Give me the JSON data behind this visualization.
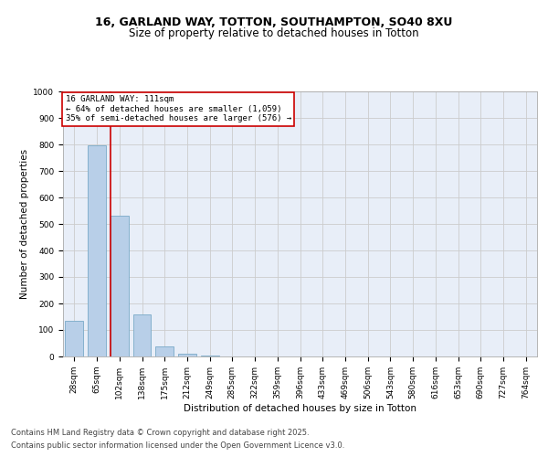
{
  "title1": "16, GARLAND WAY, TOTTON, SOUTHAMPTON, SO40 8XU",
  "title2": "Size of property relative to detached houses in Totton",
  "xlabel": "Distribution of detached houses by size in Totton",
  "ylabel": "Number of detached properties",
  "categories": [
    "28sqm",
    "65sqm",
    "102sqm",
    "138sqm",
    "175sqm",
    "212sqm",
    "249sqm",
    "285sqm",
    "322sqm",
    "359sqm",
    "396sqm",
    "433sqm",
    "469sqm",
    "506sqm",
    "543sqm",
    "580sqm",
    "616sqm",
    "653sqm",
    "690sqm",
    "727sqm",
    "764sqm"
  ],
  "values": [
    135,
    795,
    530,
    160,
    38,
    12,
    2,
    0,
    0,
    0,
    0,
    0,
    0,
    0,
    0,
    0,
    0,
    0,
    0,
    0,
    0
  ],
  "bar_color": "#b8cfe8",
  "bar_edge_color": "#7aaac8",
  "grid_color": "#cccccc",
  "bg_color": "#e8eef8",
  "annotation_text": "16 GARLAND WAY: 111sqm\n← 64% of detached houses are smaller (1,059)\n35% of semi-detached houses are larger (576) →",
  "annotation_box_color": "#ffffff",
  "annotation_border_color": "#cc0000",
  "red_line_x": 1.62,
  "ylim": [
    0,
    1000
  ],
  "yticks": [
    0,
    100,
    200,
    300,
    400,
    500,
    600,
    700,
    800,
    900,
    1000
  ],
  "footer1": "Contains HM Land Registry data © Crown copyright and database right 2025.",
  "footer2": "Contains public sector information licensed under the Open Government Licence v3.0.",
  "title_fontsize": 9,
  "subtitle_fontsize": 8.5,
  "axis_label_fontsize": 7.5,
  "tick_fontsize": 6.5,
  "annotation_fontsize": 6.5,
  "footer_fontsize": 6
}
